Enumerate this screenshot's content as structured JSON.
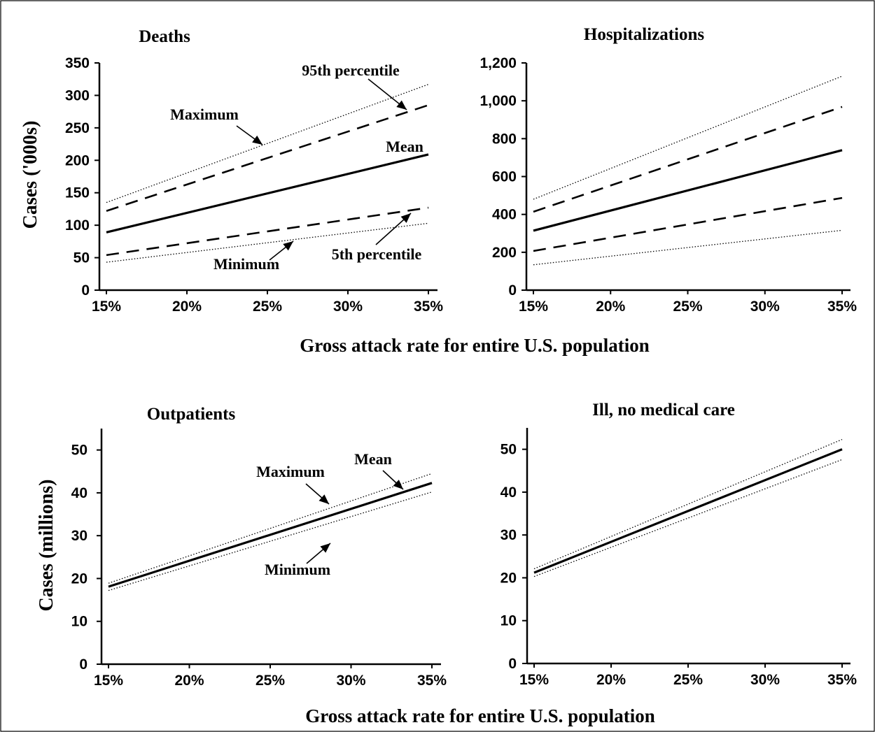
{
  "xlabel_top": "Gross attack rate for entire U.S. population",
  "xlabel_bottom": "Gross attack rate for entire U.S. population",
  "chart_data": [
    {
      "type": "line",
      "title": "Deaths",
      "ylabel": "Cases ('000s)",
      "x": [
        15,
        35
      ],
      "x_tick_labels": [
        "15%",
        "20%",
        "25%",
        "30%",
        "35%"
      ],
      "y_tick_labels": [
        "0",
        "50",
        "100",
        "150",
        "200",
        "250",
        "300",
        "350"
      ],
      "xlim": [
        15,
        35
      ],
      "ylim": [
        0,
        350
      ],
      "series": [
        {
          "name": "Maximum",
          "style": "dotted",
          "values": [
            135,
            317
          ]
        },
        {
          "name": "95th percentile",
          "style": "dashed",
          "values": [
            122,
            285
          ]
        },
        {
          "name": "Mean",
          "style": "solid",
          "values": [
            89,
            209
          ]
        },
        {
          "name": "5th percentile",
          "style": "dashed",
          "values": [
            54,
            127
          ]
        },
        {
          "name": "Minimum",
          "style": "dotted",
          "values": [
            43,
            103
          ]
        }
      ],
      "annotations": [
        "Maximum",
        "95th percentile",
        "Mean",
        "5th percentile",
        "Minimum"
      ]
    },
    {
      "type": "line",
      "title": "Hospitalizations",
      "ylabel": "",
      "x": [
        15,
        35
      ],
      "x_tick_labels": [
        "15%",
        "20%",
        "25%",
        "30%",
        "35%"
      ],
      "y_tick_labels": [
        "0",
        "200",
        "400",
        "600",
        "800",
        "1,000",
        "1,200"
      ],
      "xlim": [
        15,
        35
      ],
      "ylim": [
        0,
        1200
      ],
      "series": [
        {
          "style": "dotted",
          "values": [
            480,
            1130
          ]
        },
        {
          "style": "dashed",
          "values": [
            414,
            968
          ]
        },
        {
          "style": "solid",
          "values": [
            314,
            739
          ]
        },
        {
          "style": "dashed",
          "values": [
            207,
            487
          ]
        },
        {
          "style": "dotted",
          "values": [
            134,
            316
          ]
        }
      ],
      "annotations": []
    },
    {
      "type": "line",
      "title": "Outpatients",
      "ylabel": "Cases (millions)",
      "x": [
        15,
        35
      ],
      "x_tick_labels": [
        "15%",
        "20%",
        "25%",
        "30%",
        "35%"
      ],
      "y_tick_labels": [
        "0",
        "10",
        "20",
        "30",
        "40",
        "50"
      ],
      "xlim": [
        15,
        35
      ],
      "ylim": [
        0,
        55
      ],
      "series": [
        {
          "name": "Maximum",
          "style": "dotted",
          "values": [
            18.9,
            44.5
          ]
        },
        {
          "name": "Mean",
          "style": "solid",
          "values": [
            18.1,
            42.3
          ]
        },
        {
          "name": "Minimum",
          "style": "dotted",
          "values": [
            17.2,
            40.2
          ]
        }
      ],
      "annotations": [
        "Maximum",
        "Mean",
        "Minimum"
      ]
    },
    {
      "type": "line",
      "title": "Ill, no medical care",
      "ylabel": "",
      "x": [
        15,
        35
      ],
      "x_tick_labels": [
        "15%",
        "20%",
        "25%",
        "30%",
        "35%"
      ],
      "y_tick_labels": [
        "0",
        "10",
        "20",
        "30",
        "40",
        "50"
      ],
      "xlim": [
        15,
        35
      ],
      "ylim": [
        0,
        55
      ],
      "series": [
        {
          "style": "dotted",
          "values": [
            22.1,
            52.3
          ]
        },
        {
          "style": "solid",
          "values": [
            21.2,
            50.0
          ]
        },
        {
          "style": "dotted",
          "values": [
            20.3,
            47.6
          ]
        }
      ],
      "annotations": []
    }
  ]
}
